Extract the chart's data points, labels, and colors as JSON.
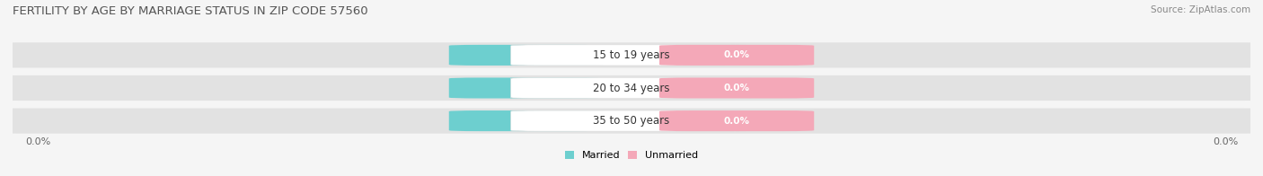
{
  "title": "FERTILITY BY AGE BY MARRIAGE STATUS IN ZIP CODE 57560",
  "source": "Source: ZipAtlas.com",
  "age_groups": [
    "15 to 19 years",
    "20 to 34 years",
    "35 to 50 years"
  ],
  "married_values": [
    0.0,
    0.0,
    0.0
  ],
  "unmarried_values": [
    0.0,
    0.0,
    0.0
  ],
  "married_color": "#6dcfcf",
  "unmarried_color": "#f4a8b8",
  "bar_bg_color": "#e2e2e2",
  "background_color": "#f5f5f5",
  "title_fontsize": 9.5,
  "source_fontsize": 7.5,
  "label_fontsize": 8,
  "badge_value_fontsize": 7.5,
  "age_label_fontsize": 8.5,
  "legend_married": "Married",
  "legend_unmarried": "Unmarried",
  "axis_label_left": "0.0%",
  "axis_label_right": "0.0%",
  "title_color": "#555555",
  "source_color": "#888888",
  "axis_color": "#666666"
}
